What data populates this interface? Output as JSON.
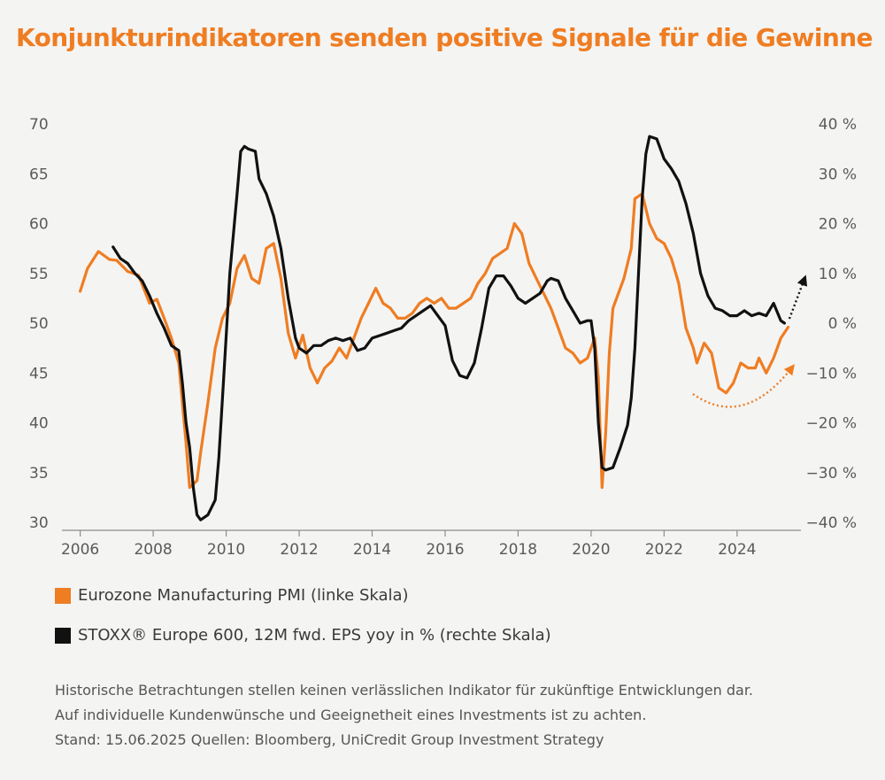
{
  "title": "Konjunkturindikatoren senden positive Signale für die Gewinne",
  "chart_data": {
    "type": "line",
    "x_ticks": [
      "2006",
      "2008",
      "2010",
      "2012",
      "2014",
      "2016",
      "2018",
      "2020",
      "2022",
      "2024"
    ],
    "y_left_ticks": [
      "70",
      "65",
      "60",
      "55",
      "50",
      "45",
      "40",
      "35",
      "30"
    ],
    "y_right_ticks": [
      "40 %",
      "30 %",
      "20 %",
      "10 %",
      "0 %",
      "−10 %",
      "−20 %",
      "−30 %",
      "−40 %"
    ],
    "y_left_range": [
      30,
      70
    ],
    "y_right_range": [
      -40,
      40
    ],
    "x_range": [
      2005.5,
      2025.75
    ],
    "series": [
      {
        "name": "Eurozone Manufacturing PMI (linke Skala)",
        "axis": "left",
        "color": "#ef7d22",
        "points": [
          [
            2006.0,
            53.2
          ],
          [
            2006.2,
            55.5
          ],
          [
            2006.5,
            57.2
          ],
          [
            2006.8,
            56.4
          ],
          [
            2007.0,
            56.3
          ],
          [
            2007.3,
            55.2
          ],
          [
            2007.6,
            54.8
          ],
          [
            2007.9,
            52.0
          ],
          [
            2008.1,
            52.4
          ],
          [
            2008.3,
            50.5
          ],
          [
            2008.5,
            48.5
          ],
          [
            2008.7,
            46.0
          ],
          [
            2008.8,
            42.0
          ],
          [
            2008.9,
            38.0
          ],
          [
            2009.0,
            33.5
          ],
          [
            2009.2,
            34.2
          ],
          [
            2009.3,
            37.0
          ],
          [
            2009.5,
            42.0
          ],
          [
            2009.7,
            47.5
          ],
          [
            2009.9,
            50.5
          ],
          [
            2010.1,
            52.0
          ],
          [
            2010.3,
            55.5
          ],
          [
            2010.5,
            56.8
          ],
          [
            2010.7,
            54.5
          ],
          [
            2010.9,
            54.0
          ],
          [
            2011.1,
            57.5
          ],
          [
            2011.3,
            58.0
          ],
          [
            2011.5,
            54.5
          ],
          [
            2011.7,
            49.0
          ],
          [
            2011.9,
            46.5
          ],
          [
            2012.1,
            48.8
          ],
          [
            2012.3,
            45.5
          ],
          [
            2012.5,
            44.0
          ],
          [
            2012.7,
            45.5
          ],
          [
            2012.9,
            46.2
          ],
          [
            2013.1,
            47.5
          ],
          [
            2013.3,
            46.5
          ],
          [
            2013.5,
            48.5
          ],
          [
            2013.7,
            50.5
          ],
          [
            2013.9,
            52.0
          ],
          [
            2014.1,
            53.5
          ],
          [
            2014.3,
            52.0
          ],
          [
            2014.5,
            51.5
          ],
          [
            2014.7,
            50.5
          ],
          [
            2014.9,
            50.5
          ],
          [
            2015.1,
            51.0
          ],
          [
            2015.3,
            52.0
          ],
          [
            2015.5,
            52.5
          ],
          [
            2015.7,
            52.0
          ],
          [
            2015.9,
            52.5
          ],
          [
            2016.1,
            51.5
          ],
          [
            2016.3,
            51.5
          ],
          [
            2016.5,
            52.0
          ],
          [
            2016.7,
            52.5
          ],
          [
            2016.9,
            54.0
          ],
          [
            2017.1,
            55.0
          ],
          [
            2017.3,
            56.5
          ],
          [
            2017.5,
            57.0
          ],
          [
            2017.7,
            57.5
          ],
          [
            2017.9,
            60.0
          ],
          [
            2018.1,
            59.0
          ],
          [
            2018.3,
            56.0
          ],
          [
            2018.5,
            54.5
          ],
          [
            2018.7,
            53.0
          ],
          [
            2018.9,
            51.5
          ],
          [
            2019.1,
            49.5
          ],
          [
            2019.3,
            47.5
          ],
          [
            2019.5,
            47.0
          ],
          [
            2019.7,
            46.0
          ],
          [
            2019.9,
            46.5
          ],
          [
            2020.0,
            47.5
          ],
          [
            2020.1,
            48.5
          ],
          [
            2020.2,
            44.5
          ],
          [
            2020.3,
            33.5
          ],
          [
            2020.4,
            39.0
          ],
          [
            2020.5,
            47.0
          ],
          [
            2020.6,
            51.5
          ],
          [
            2020.8,
            53.5
          ],
          [
            2020.9,
            54.5
          ],
          [
            2021.1,
            57.5
          ],
          [
            2021.2,
            62.5
          ],
          [
            2021.4,
            63.0
          ],
          [
            2021.6,
            60.0
          ],
          [
            2021.8,
            58.5
          ],
          [
            2022.0,
            58.0
          ],
          [
            2022.2,
            56.5
          ],
          [
            2022.4,
            54.0
          ],
          [
            2022.6,
            49.5
          ],
          [
            2022.8,
            47.5
          ],
          [
            2022.9,
            46.0
          ],
          [
            2023.1,
            48.0
          ],
          [
            2023.3,
            47.0
          ],
          [
            2023.5,
            43.5
          ],
          [
            2023.7,
            43.0
          ],
          [
            2023.9,
            44.0
          ],
          [
            2024.1,
            46.0
          ],
          [
            2024.3,
            45.5
          ],
          [
            2024.5,
            45.5
          ],
          [
            2024.6,
            46.5
          ],
          [
            2024.8,
            45.0
          ],
          [
            2025.0,
            46.5
          ],
          [
            2025.2,
            48.5
          ],
          [
            2025.4,
            49.6
          ]
        ]
      },
      {
        "name": "STOXX® Europe 600, 12M fwd. EPS yoy in % (rechte Skala)",
        "axis": "right",
        "color": "#111111",
        "points": [
          [
            2006.9,
            15.3
          ],
          [
            2007.1,
            13.0
          ],
          [
            2007.3,
            12.0
          ],
          [
            2007.5,
            10.0
          ],
          [
            2007.7,
            8.5
          ],
          [
            2007.9,
            5.5
          ],
          [
            2008.1,
            2.0
          ],
          [
            2008.3,
            -1.0
          ],
          [
            2008.5,
            -4.5
          ],
          [
            2008.7,
            -5.5
          ],
          [
            2008.8,
            -12.0
          ],
          [
            2008.9,
            -20.0
          ],
          [
            2009.0,
            -25.0
          ],
          [
            2009.1,
            -33.0
          ],
          [
            2009.2,
            -38.5
          ],
          [
            2009.3,
            -39.5
          ],
          [
            2009.5,
            -38.5
          ],
          [
            2009.7,
            -35.5
          ],
          [
            2009.8,
            -27.0
          ],
          [
            2009.9,
            -15.0
          ],
          [
            2010.0,
            -2.5
          ],
          [
            2010.1,
            10.0
          ],
          [
            2010.3,
            26.0
          ],
          [
            2010.4,
            34.5
          ],
          [
            2010.5,
            35.5
          ],
          [
            2010.6,
            35.0
          ],
          [
            2010.8,
            34.5
          ],
          [
            2010.9,
            29.0
          ],
          [
            2011.1,
            26.0
          ],
          [
            2011.3,
            21.5
          ],
          [
            2011.5,
            15.0
          ],
          [
            2011.7,
            5.0
          ],
          [
            2011.9,
            -3.0
          ],
          [
            2012.0,
            -5.0
          ],
          [
            2012.2,
            -6.0
          ],
          [
            2012.4,
            -4.5
          ],
          [
            2012.6,
            -4.5
          ],
          [
            2012.8,
            -3.5
          ],
          [
            2013.0,
            -3.0
          ],
          [
            2013.2,
            -3.5
          ],
          [
            2013.4,
            -3.0
          ],
          [
            2013.6,
            -5.5
          ],
          [
            2013.8,
            -5.0
          ],
          [
            2014.0,
            -3.0
          ],
          [
            2014.2,
            -2.5
          ],
          [
            2014.4,
            -2.0
          ],
          [
            2014.6,
            -1.5
          ],
          [
            2014.8,
            -1.0
          ],
          [
            2015.0,
            0.5
          ],
          [
            2015.2,
            1.5
          ],
          [
            2015.4,
            2.5
          ],
          [
            2015.6,
            3.5
          ],
          [
            2015.8,
            1.5
          ],
          [
            2016.0,
            -0.5
          ],
          [
            2016.2,
            -7.5
          ],
          [
            2016.4,
            -10.5
          ],
          [
            2016.6,
            -11.0
          ],
          [
            2016.8,
            -8.0
          ],
          [
            2017.0,
            -1.0
          ],
          [
            2017.2,
            7.0
          ],
          [
            2017.4,
            9.5
          ],
          [
            2017.6,
            9.5
          ],
          [
            2017.8,
            7.5
          ],
          [
            2018.0,
            5.0
          ],
          [
            2018.2,
            4.0
          ],
          [
            2018.4,
            5.0
          ],
          [
            2018.6,
            6.0
          ],
          [
            2018.8,
            8.5
          ],
          [
            2018.9,
            9.0
          ],
          [
            2019.1,
            8.5
          ],
          [
            2019.3,
            5.0
          ],
          [
            2019.5,
            2.5
          ],
          [
            2019.7,
            0.0
          ],
          [
            2019.9,
            0.5
          ],
          [
            2020.0,
            0.5
          ],
          [
            2020.1,
            -5.0
          ],
          [
            2020.2,
            -20.0
          ],
          [
            2020.3,
            -29.0
          ],
          [
            2020.4,
            -29.5
          ],
          [
            2020.6,
            -29.0
          ],
          [
            2020.8,
            -25.0
          ],
          [
            2021.0,
            -20.5
          ],
          [
            2021.1,
            -15.0
          ],
          [
            2021.2,
            -5.0
          ],
          [
            2021.3,
            10.0
          ],
          [
            2021.4,
            25.0
          ],
          [
            2021.5,
            34.0
          ],
          [
            2021.6,
            37.5
          ],
          [
            2021.8,
            37.0
          ],
          [
            2022.0,
            33.0
          ],
          [
            2022.2,
            31.0
          ],
          [
            2022.4,
            28.5
          ],
          [
            2022.6,
            24.0
          ],
          [
            2022.8,
            18.0
          ],
          [
            2023.0,
            10.0
          ],
          [
            2023.2,
            5.5
          ],
          [
            2023.4,
            3.0
          ],
          [
            2023.6,
            2.5
          ],
          [
            2023.8,
            1.5
          ],
          [
            2024.0,
            1.5
          ],
          [
            2024.2,
            2.5
          ],
          [
            2024.4,
            1.5
          ],
          [
            2024.6,
            2.0
          ],
          [
            2024.8,
            1.5
          ],
          [
            2025.0,
            4.0
          ],
          [
            2025.2,
            0.5
          ],
          [
            2025.3,
            0.0
          ]
        ]
      }
    ],
    "annotations": [
      {
        "type": "arrow",
        "color": "#111111",
        "style": "dotted"
      },
      {
        "type": "arrow",
        "color": "#ef7d22",
        "style": "dotted-curve"
      }
    ]
  },
  "legend": [
    {
      "label": "Eurozone Manufacturing PMI (linke Skala)",
      "color": "#ef7d22"
    },
    {
      "label": "STOXX® Europe 600, 12M fwd. EPS yoy in % (rechte Skala)",
      "color": "#111111"
    }
  ],
  "footnote": [
    "Historische Betrachtungen stellen keinen verlässlichen Indikator für zukünftige Entwicklungen dar.",
    "Auf individuelle Kundenwünsche und Geeignetheit eines Investments ist zu achten.",
    "Stand: 15.06.2025 Quellen: Bloomberg, UniCredit Group Investment Strategy"
  ]
}
